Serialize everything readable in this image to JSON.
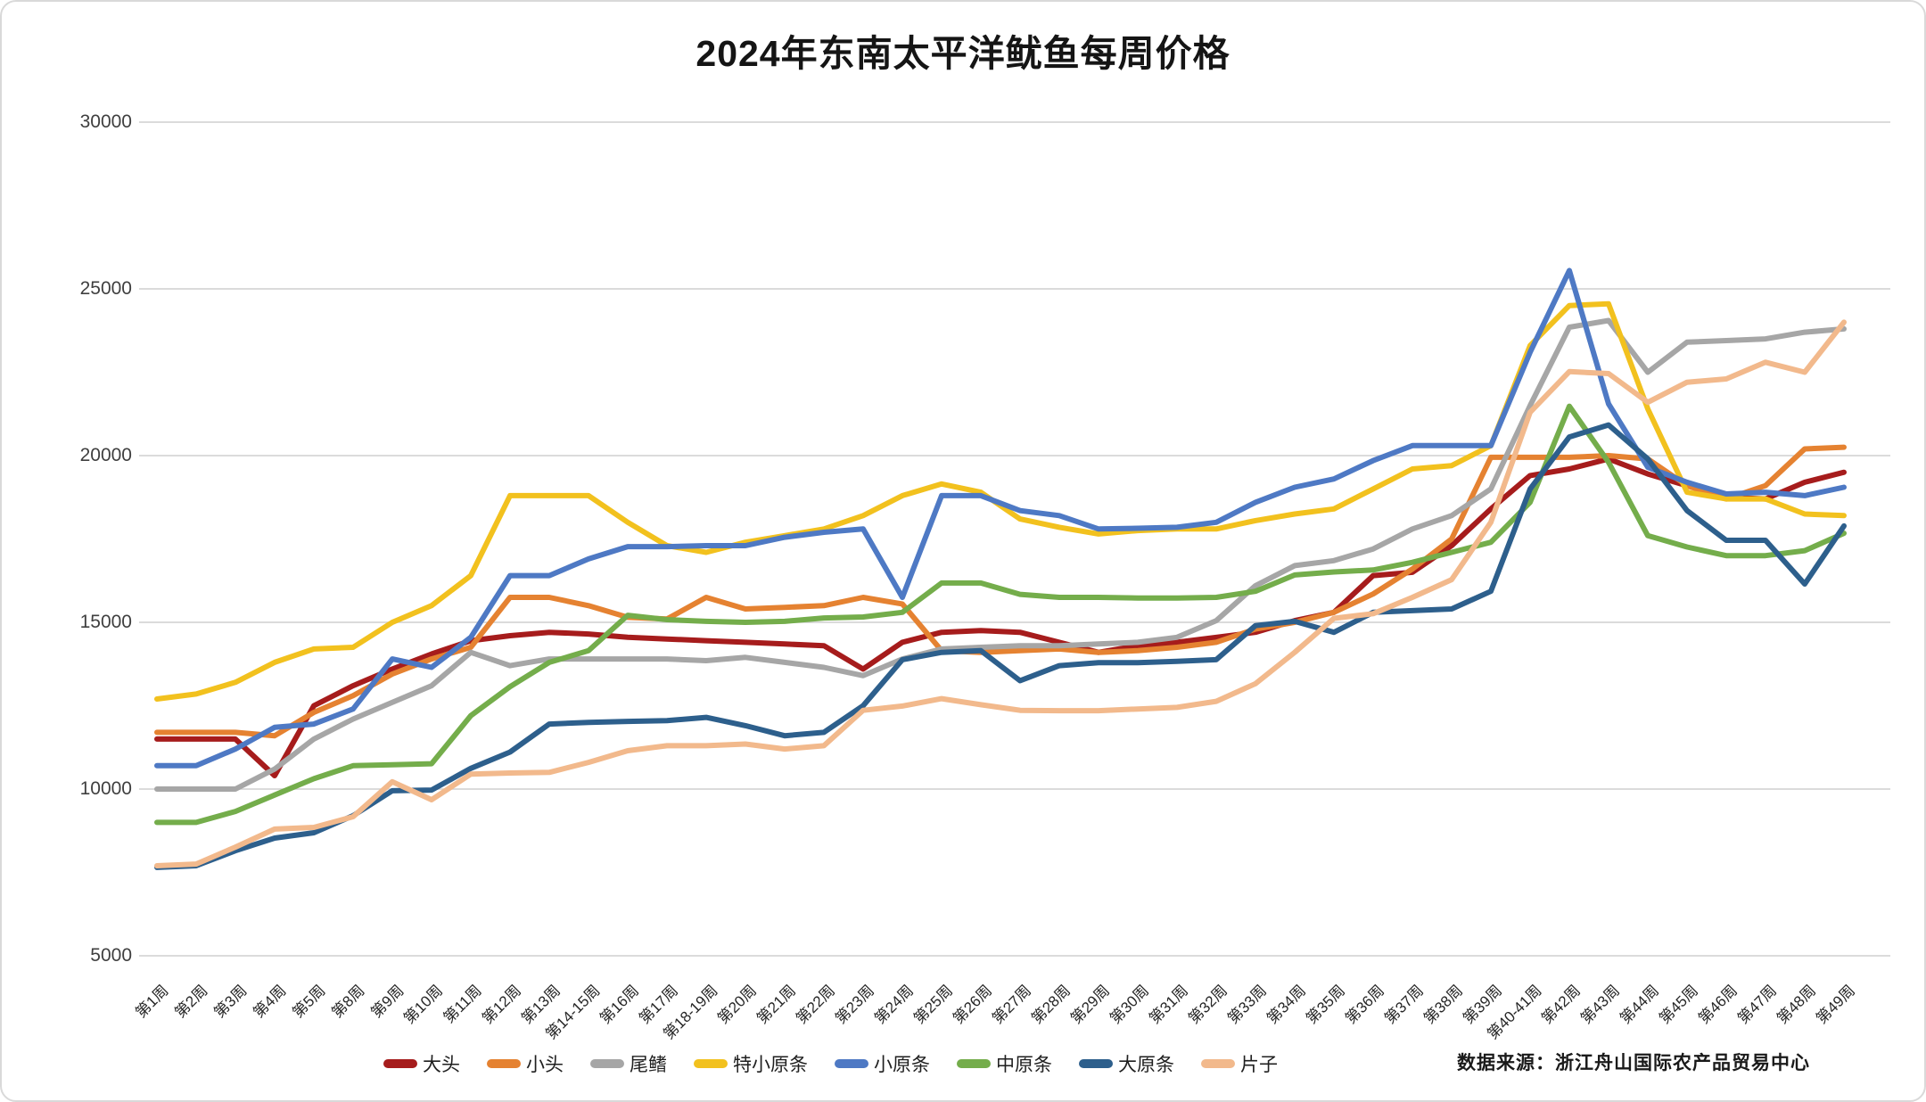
{
  "header": {
    "title": "2024年东南太平洋鱿鱼每周价格"
  },
  "footer": {
    "source_note": "数据来源：浙江舟山国际农产品贸易中心"
  },
  "chart_data": {
    "type": "line",
    "title": "2024年东南太平洋鱿鱼每周价格",
    "xlabel": "",
    "ylabel": "",
    "ylim": [
      5000,
      30000
    ],
    "y_ticks": [
      30000,
      25000,
      20000,
      15000,
      10000,
      5000
    ],
    "grid": "horizontal",
    "legend_position": "bottom",
    "categories": [
      "第1周",
      "第2周",
      "第3周",
      "第4周",
      "第5周",
      "第8周",
      "第9周",
      "第10周",
      "第11周",
      "第12周",
      "第13周",
      "第14-15周",
      "第16周",
      "第17周",
      "第18-19周",
      "第20周",
      "第21周",
      "第22周",
      "第23周",
      "第24周",
      "第25周",
      "第26周",
      "第27周",
      "第28周",
      "第29周",
      "第30周",
      "第31周",
      "第32周",
      "第33周",
      "第34周",
      "第35周",
      "第36周",
      "第37周",
      "第38周",
      "第39周",
      "第40-41周",
      "第42周",
      "第43周",
      "第44周",
      "第45周",
      "第46周",
      "第47周",
      "第48周",
      "第49周"
    ],
    "series": [
      {
        "name": "大头",
        "color": "#A61C1C",
        "values": [
          11500,
          11500,
          11500,
          10400,
          12500,
          13100,
          13600,
          14050,
          14450,
          14600,
          14700,
          14650,
          14550,
          14500,
          14450,
          14400,
          14350,
          14300,
          13600,
          14400,
          14700,
          14750,
          14700,
          14400,
          14100,
          14300,
          14400,
          14550,
          14700,
          15050,
          15300,
          16400,
          16500,
          17300,
          18400,
          19400,
          19600,
          19900,
          19450,
          19100,
          18750,
          18700,
          19200,
          19500
        ]
      },
      {
        "name": "小头",
        "color": "#E58231",
        "values": [
          11700,
          11700,
          11700,
          11600,
          12300,
          12800,
          13450,
          13900,
          14250,
          15750,
          15750,
          15500,
          15150,
          15100,
          15750,
          15400,
          15450,
          15500,
          15750,
          15550,
          14150,
          14100,
          14150,
          14200,
          14100,
          14150,
          14250,
          14400,
          14800,
          15000,
          15300,
          15850,
          16600,
          17500,
          19950,
          19950,
          19950,
          20000,
          19900,
          19100,
          18700,
          19100,
          20200,
          20250
        ]
      },
      {
        "name": "尾鳍",
        "color": "#A6A6A6",
        "values": [
          10000,
          10000,
          10000,
          10600,
          11500,
          12100,
          12600,
          13100,
          14100,
          13700,
          13900,
          13900,
          13900,
          13900,
          13850,
          13950,
          13800,
          13650,
          13400,
          13900,
          14200,
          14250,
          14300,
          14300,
          14350,
          14400,
          14550,
          15050,
          16100,
          16700,
          16850,
          17200,
          17800,
          18200,
          19000,
          21500,
          23850,
          24050,
          22500,
          23400,
          23450,
          23500,
          23700,
          23800
        ]
      },
      {
        "name": "特小原条",
        "color": "#F2C11E",
        "values": [
          12700,
          12850,
          13200,
          13800,
          14200,
          14250,
          15000,
          15500,
          16400,
          18800,
          18800,
          18800,
          18000,
          17300,
          17100,
          17400,
          17600,
          17800,
          18200,
          18800,
          19150,
          18900,
          18100,
          17850,
          17650,
          17750,
          17800,
          17800,
          18050,
          18250,
          18400,
          19000,
          19600,
          19700,
          20300,
          23300,
          24500,
          24550,
          21400,
          18900,
          18700,
          18700,
          18250,
          18200
        ]
      },
      {
        "name": "小原条",
        "color": "#4E79C4",
        "values": [
          10700,
          10700,
          11200,
          11850,
          11950,
          12400,
          13900,
          13650,
          14550,
          16400,
          16400,
          16900,
          17270,
          17270,
          17300,
          17300,
          17550,
          17700,
          17800,
          15750,
          18800,
          18800,
          18350,
          18200,
          17800,
          17820,
          17850,
          18000,
          18600,
          19050,
          19300,
          19850,
          20300,
          20300,
          20300,
          23100,
          25550,
          21550,
          19650,
          19200,
          18850,
          18900,
          18800,
          19050
        ]
      },
      {
        "name": "中原条",
        "color": "#74AD4B",
        "values": [
          9000,
          9000,
          9330,
          9820,
          10310,
          10700,
          10730,
          10760,
          12200,
          13070,
          13800,
          14150,
          15210,
          15080,
          15030,
          15000,
          15030,
          15130,
          15160,
          15300,
          16180,
          16180,
          15840,
          15750,
          15750,
          15730,
          15730,
          15750,
          15930,
          16420,
          16510,
          16570,
          16800,
          17100,
          17400,
          18600,
          21480,
          19800,
          17600,
          17260,
          17000,
          17000,
          17150,
          17670
        ]
      },
      {
        "name": "大原条",
        "color": "#2D5F8C",
        "values": [
          7650,
          7700,
          8150,
          8530,
          8690,
          9200,
          9950,
          9970,
          10620,
          11110,
          11950,
          12000,
          12030,
          12050,
          12150,
          11900,
          11600,
          11700,
          12500,
          13880,
          14100,
          14150,
          13250,
          13700,
          13790,
          13790,
          13830,
          13880,
          14900,
          15030,
          14700,
          15300,
          15350,
          15400,
          15930,
          19000,
          20560,
          20920,
          19900,
          18350,
          17460,
          17460,
          16150,
          17890
        ]
      },
      {
        "name": "片子",
        "color": "#F2B98C",
        "values": [
          7700,
          7750,
          8260,
          8800,
          8850,
          9170,
          10220,
          9680,
          10450,
          10480,
          10500,
          10800,
          11150,
          11300,
          11300,
          11350,
          11200,
          11300,
          12360,
          12490,
          12710,
          12530,
          12360,
          12350,
          12350,
          12400,
          12450,
          12630,
          13160,
          14100,
          15120,
          15260,
          15750,
          16280,
          18000,
          21300,
          22520,
          22460,
          21600,
          22200,
          22300,
          22800,
          22500,
          24000
        ]
      }
    ]
  }
}
